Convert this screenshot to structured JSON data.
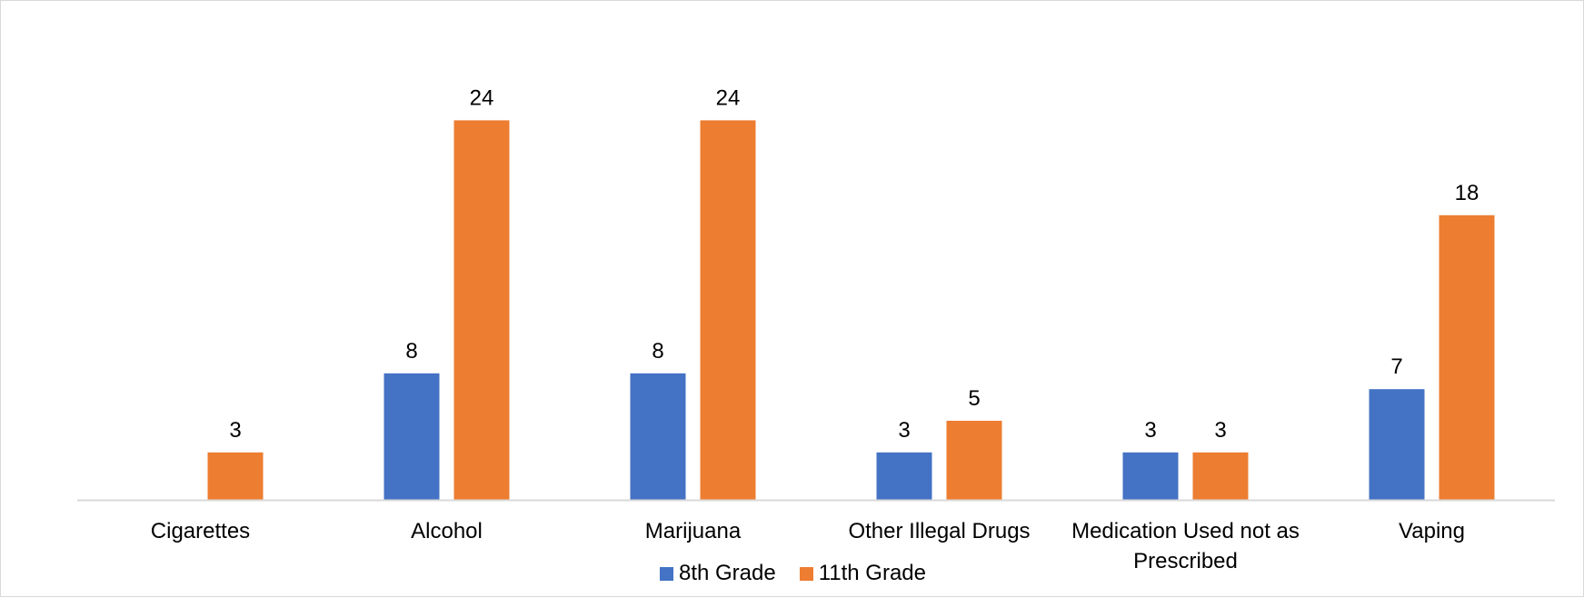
{
  "chart_data": {
    "type": "bar",
    "categories": [
      [
        "Cigarettes"
      ],
      [
        "Alcohol"
      ],
      [
        "Marijuana"
      ],
      [
        "Other Illegal Drugs"
      ],
      [
        "Medication Used not as",
        "Prescribed"
      ],
      [
        "Vaping"
      ]
    ],
    "series": [
      {
        "name": "8th Grade",
        "color": "#4472C4",
        "values": [
          null,
          8,
          8,
          3,
          3,
          7
        ],
        "labels": [
          "",
          "8",
          "8",
          "3",
          "3",
          "7"
        ]
      },
      {
        "name": "11th Grade",
        "color": "#ED7D31",
        "values": [
          3,
          24,
          24,
          5,
          3,
          18
        ],
        "labels": [
          "3",
          "24",
          "24",
          "5",
          "3",
          "18"
        ]
      }
    ],
    "ylim": [
      0,
      24
    ],
    "grid": false,
    "legend_position": "bottom"
  }
}
